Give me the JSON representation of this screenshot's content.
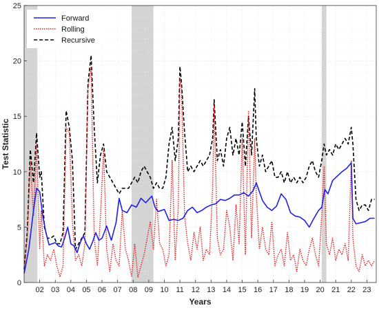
{
  "chart_data": {
    "type": "line",
    "xlabel": "Years",
    "ylabel": "Test Statistic",
    "xlim": [
      2001.0,
      2023.6
    ],
    "ylim": [
      0,
      25
    ],
    "grid": true,
    "legend_position": "top-left",
    "x_ticks": [
      2002,
      2003,
      2004,
      2005,
      2006,
      2007,
      2008,
      2009,
      2010,
      2011,
      2012,
      2013,
      2014,
      2015,
      2016,
      2017,
      2018,
      2019,
      2020,
      2021,
      2022,
      2023
    ],
    "x_tick_labels": [
      "02",
      "03",
      "04",
      "05",
      "06",
      "07",
      "08",
      "09",
      "10",
      "11",
      "12",
      "13",
      "14",
      "15",
      "16",
      "17",
      "18",
      "19",
      "20",
      "21",
      "22",
      "23"
    ],
    "y_ticks": [
      0,
      5,
      10,
      15,
      20,
      25
    ],
    "y_tick_labels": [
      "0",
      "5",
      "10",
      "15",
      "20",
      "25"
    ],
    "shaded_periods": [
      [
        2001.0,
        2001.85
      ],
      [
        2007.9,
        2009.3
      ],
      [
        2020.1,
        2020.4
      ]
    ],
    "colors": {
      "forward": "#1f1fe6",
      "rolling": "#e61e1e",
      "recursive": "#000000",
      "shade": "#d4d4d4",
      "grid": "#dcdcdc"
    },
    "series": [
      {
        "name": "Forward",
        "style": "solid",
        "x": [
          2001.0,
          2001.3,
          2001.6,
          2001.8,
          2002.0,
          2002.2,
          2002.4,
          2002.6,
          2002.8,
          2003.0,
          2003.2,
          2003.4,
          2003.6,
          2003.8,
          2004.0,
          2004.2,
          2004.4,
          2004.6,
          2004.8,
          2005.0,
          2005.2,
          2005.4,
          2005.6,
          2005.8,
          2006.0,
          2006.3,
          2006.6,
          2006.9,
          2007.1,
          2007.3,
          2007.6,
          2007.9,
          2008.2,
          2008.5,
          2008.8,
          2009.0,
          2009.2,
          2009.4,
          2009.6,
          2009.8,
          2010.0,
          2010.3,
          2010.6,
          2010.9,
          2011.2,
          2011.5,
          2011.8,
          2012.1,
          2012.4,
          2012.7,
          2013.0,
          2013.3,
          2013.6,
          2013.9,
          2014.2,
          2014.5,
          2014.8,
          2015.1,
          2015.4,
          2015.7,
          2015.9,
          2016.1,
          2016.3,
          2016.6,
          2016.9,
          2017.2,
          2017.5,
          2017.8,
          2018.1,
          2018.4,
          2018.7,
          2019.0,
          2019.3,
          2019.6,
          2019.9,
          2020.1,
          2020.3,
          2020.5,
          2020.8,
          2021.1,
          2021.4,
          2021.7,
          2022.0,
          2022.1,
          2022.3,
          2022.6,
          2022.9,
          2023.2,
          2023.5
        ],
        "values": [
          0.8,
          3.0,
          6.5,
          8.5,
          8.2,
          6.0,
          4.5,
          3.4,
          3.5,
          3.6,
          3.3,
          3.2,
          4.0,
          5.0,
          3.5,
          3.3,
          2.7,
          3.6,
          4.2,
          3.5,
          3.0,
          3.7,
          4.5,
          3.8,
          4.0,
          5.1,
          3.8,
          5.4,
          7.6,
          6.5,
          6.3,
          7.0,
          6.8,
          7.6,
          7.2,
          7.5,
          7.8,
          6.8,
          6.4,
          6.5,
          6.6,
          5.6,
          5.7,
          5.6,
          5.8,
          6.5,
          6.8,
          6.3,
          6.5,
          6.8,
          7.0,
          7.1,
          7.5,
          7.4,
          7.6,
          7.9,
          7.9,
          8.1,
          7.8,
          8.3,
          9.0,
          8.2,
          7.4,
          6.8,
          6.5,
          6.9,
          8.0,
          7.5,
          6.3,
          6.0,
          5.9,
          5.6,
          5.0,
          5.8,
          6.5,
          6.8,
          8.4,
          8.0,
          9.2,
          9.6,
          10.0,
          10.3,
          10.8,
          5.8,
          5.3,
          5.4,
          5.5,
          5.8,
          5.8
        ]
      },
      {
        "name": "Rolling",
        "style": "dotted",
        "x": [
          2001.0,
          2001.2,
          2001.4,
          2001.6,
          2001.8,
          2002.0,
          2002.1,
          2002.3,
          2002.5,
          2002.7,
          2002.9,
          2003.1,
          2003.3,
          2003.5,
          2003.7,
          2003.9,
          2004.1,
          2004.3,
          2004.5,
          2004.7,
          2004.9,
          2005.1,
          2005.3,
          2005.5,
          2005.7,
          2005.9,
          2006.1,
          2006.3,
          2006.5,
          2006.7,
          2006.9,
          2007.1,
          2007.3,
          2007.5,
          2007.7,
          2007.9,
          2008.1,
          2008.3,
          2008.5,
          2008.7,
          2008.9,
          2009.1,
          2009.3,
          2009.5,
          2009.7,
          2009.9,
          2010.1,
          2010.3,
          2010.5,
          2010.7,
          2010.9,
          2011.0,
          2011.1,
          2011.3,
          2011.5,
          2011.7,
          2011.9,
          2012.1,
          2012.3,
          2012.5,
          2012.7,
          2012.9,
          2013.1,
          2013.2,
          2013.4,
          2013.6,
          2013.8,
          2014.0,
          2014.2,
          2014.4,
          2014.6,
          2014.8,
          2015.0,
          2015.2,
          2015.4,
          2015.6,
          2015.8,
          2015.9,
          2016.1,
          2016.3,
          2016.5,
          2016.7,
          2016.9,
          2017.1,
          2017.3,
          2017.5,
          2017.7,
          2017.9,
          2018.1,
          2018.3,
          2018.5,
          2018.7,
          2018.9,
          2019.1,
          2019.3,
          2019.5,
          2019.7,
          2019.9,
          2020.1,
          2020.25,
          2020.4,
          2020.6,
          2020.8,
          2021.0,
          2021.2,
          2021.4,
          2021.6,
          2021.8,
          2022.0,
          2022.1,
          2022.3,
          2022.5,
          2022.7,
          2022.9,
          2023.1,
          2023.3,
          2023.5
        ],
        "values": [
          1.0,
          4.0,
          11.0,
          6.0,
          12.5,
          3.0,
          6.5,
          1.5,
          2.5,
          2.0,
          3.0,
          1.5,
          0.5,
          1.5,
          14.0,
          13.5,
          5.5,
          2.0,
          2.5,
          1.5,
          3.5,
          17.5,
          19.5,
          4.0,
          1.5,
          6.0,
          12.0,
          3.0,
          1.0,
          3.5,
          2.0,
          1.5,
          6.5,
          3.0,
          2.0,
          0.5,
          3.5,
          0.5,
          1.5,
          2.5,
          4.0,
          5.5,
          3.0,
          7.5,
          3.5,
          3.0,
          1.5,
          2.5,
          11.0,
          2.0,
          7.0,
          18.5,
          17.5,
          6.0,
          3.5,
          2.0,
          4.5,
          3.0,
          5.0,
          2.0,
          3.0,
          2.5,
          8.5,
          16.0,
          4.0,
          2.5,
          3.0,
          6.5,
          5.0,
          2.0,
          7.0,
          3.5,
          13.0,
          2.5,
          15.5,
          4.0,
          13.0,
          8.0,
          3.0,
          5.0,
          3.0,
          2.5,
          5.5,
          1.5,
          2.5,
          3.0,
          1.5,
          4.5,
          2.0,
          2.5,
          1.0,
          3.0,
          2.0,
          1.5,
          3.0,
          4.0,
          2.5,
          1.5,
          6.0,
          10.5,
          3.5,
          2.5,
          4.0,
          2.0,
          3.0,
          2.5,
          3.5,
          2.0,
          11.0,
          4.0,
          1.5,
          1.0,
          2.5,
          1.5,
          2.0,
          1.5,
          2.0
        ]
      },
      {
        "name": "Recursive",
        "style": "dashed",
        "x": [
          2001.0,
          2001.2,
          2001.4,
          2001.6,
          2001.8,
          2002.0,
          2002.1,
          2002.3,
          2002.5,
          2002.7,
          2002.9,
          2003.1,
          2003.3,
          2003.5,
          2003.7,
          2003.9,
          2004.1,
          2004.3,
          2004.5,
          2004.7,
          2004.9,
          2005.1,
          2005.3,
          2005.5,
          2005.7,
          2005.9,
          2006.1,
          2006.3,
          2006.5,
          2006.7,
          2006.9,
          2007.1,
          2007.3,
          2007.5,
          2007.7,
          2007.9,
          2008.1,
          2008.3,
          2008.5,
          2008.7,
          2008.9,
          2009.1,
          2009.3,
          2009.5,
          2009.7,
          2009.9,
          2010.1,
          2010.3,
          2010.5,
          2010.7,
          2010.9,
          2011.0,
          2011.1,
          2011.3,
          2011.5,
          2011.7,
          2011.9,
          2012.1,
          2012.3,
          2012.5,
          2012.7,
          2012.9,
          2013.1,
          2013.2,
          2013.4,
          2013.6,
          2013.8,
          2014.0,
          2014.2,
          2014.4,
          2014.6,
          2014.8,
          2015.0,
          2015.2,
          2015.4,
          2015.6,
          2015.8,
          2015.9,
          2016.1,
          2016.3,
          2016.5,
          2016.7,
          2016.9,
          2017.1,
          2017.3,
          2017.5,
          2017.7,
          2017.9,
          2018.1,
          2018.3,
          2018.5,
          2018.7,
          2018.9,
          2019.1,
          2019.3,
          2019.5,
          2019.7,
          2019.9,
          2020.1,
          2020.25,
          2020.4,
          2020.6,
          2020.8,
          2021.0,
          2021.2,
          2021.4,
          2021.6,
          2021.8,
          2022.0,
          2022.1,
          2022.3,
          2022.5,
          2022.7,
          2022.9,
          2023.1,
          2023.3,
          2023.5
        ],
        "values": [
          1.2,
          4.5,
          12.0,
          9.0,
          13.5,
          9.5,
          10.0,
          5.0,
          4.0,
          4.0,
          4.2,
          3.5,
          3.5,
          4.5,
          15.5,
          14.0,
          11.0,
          3.0,
          3.5,
          4.0,
          4.5,
          18.0,
          20.5,
          14.0,
          9.0,
          11.5,
          12.5,
          10.0,
          9.5,
          9.0,
          8.5,
          8.0,
          8.5,
          8.5,
          8.5,
          9.0,
          9.5,
          9.0,
          10.0,
          10.5,
          10.0,
          9.5,
          8.5,
          9.0,
          8.5,
          8.5,
          9.5,
          12.5,
          14.0,
          11.0,
          13.0,
          19.5,
          18.0,
          13.5,
          10.0,
          10.5,
          10.0,
          10.5,
          11.0,
          10.5,
          11.0,
          11.5,
          13.0,
          16.5,
          11.0,
          12.0,
          10.5,
          13.0,
          14.0,
          11.5,
          13.0,
          11.5,
          14.5,
          10.5,
          15.0,
          11.5,
          17.5,
          13.0,
          10.5,
          11.5,
          10.0,
          10.5,
          11.0,
          9.5,
          9.5,
          10.0,
          9.0,
          10.0,
          9.0,
          9.5,
          9.0,
          9.5,
          9.0,
          9.5,
          10.5,
          11.0,
          10.0,
          9.5,
          11.0,
          12.5,
          11.5,
          12.0,
          11.5,
          12.5,
          12.0,
          12.5,
          13.0,
          12.5,
          14.0,
          12.5,
          7.5,
          6.5,
          7.0,
          7.0,
          6.5,
          7.5,
          7.5
        ]
      }
    ]
  }
}
